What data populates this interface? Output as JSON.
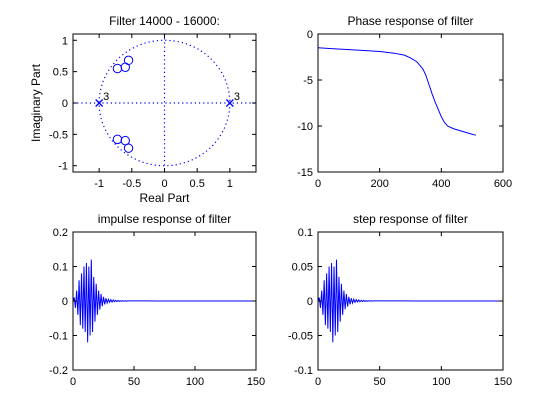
{
  "chart_data": [
    {
      "type": "scatter",
      "title": "Filter 14000 - 16000:",
      "xlabel": "Real Part",
      "ylabel": "Imaginary Part",
      "xlim": [
        -1.4,
        1.4
      ],
      "ylim": [
        -1.1,
        1.1
      ],
      "xticks": [
        -1,
        -0.5,
        0,
        0.5,
        1
      ],
      "xtick_labels": [
        "-1",
        "-0.5",
        "0",
        "0.5",
        "1"
      ],
      "yticks": [
        -1,
        -0.5,
        0,
        0.5,
        1
      ],
      "yticks_labels": [
        "-1",
        "-0.5",
        "0",
        "0.5",
        "1"
      ],
      "zeros": [
        {
          "x": -0.72,
          "y": 0.55
        },
        {
          "x": -0.6,
          "y": 0.57
        },
        {
          "x": -0.55,
          "y": 0.68
        },
        {
          "x": -0.72,
          "y": -0.58
        },
        {
          "x": -0.6,
          "y": -0.6
        },
        {
          "x": -0.55,
          "y": -0.72
        }
      ],
      "poles": [
        {
          "x": -1.0,
          "y": 0,
          "multiplicity": "3"
        },
        {
          "x": 1.0,
          "y": 0,
          "multiplicity": "3"
        }
      ],
      "unit_circle": true,
      "grid": false
    },
    {
      "type": "line",
      "title": "Phase response of filter",
      "xlabel": "",
      "ylabel": "",
      "xlim": [
        0,
        600
      ],
      "ylim": [
        -15,
        0
      ],
      "xticks": [
        0,
        200,
        400,
        600
      ],
      "xtick_labels": [
        "0",
        "200",
        "400",
        "600"
      ],
      "yticks": [
        -15,
        -10,
        -5,
        0
      ],
      "yticks_labels": [
        "-15",
        "-10",
        "-5",
        "0"
      ],
      "x": [
        0,
        50,
        100,
        150,
        200,
        250,
        280,
        300,
        320,
        340,
        350,
        360,
        370,
        380,
        390,
        400,
        410,
        420,
        440,
        470,
        500,
        512
      ],
      "y": [
        -1.5,
        -1.6,
        -1.7,
        -1.8,
        -1.9,
        -2.1,
        -2.3,
        -2.6,
        -3.0,
        -3.8,
        -4.5,
        -5.5,
        -6.5,
        -7.4,
        -8.2,
        -9.0,
        -9.6,
        -10.0,
        -10.3,
        -10.6,
        -10.9,
        -11.0
      ],
      "grid": false
    },
    {
      "type": "line",
      "title": "impulse response of filter",
      "xlabel": "",
      "ylabel": "",
      "xlim": [
        0,
        150
      ],
      "ylim": [
        -0.2,
        0.2
      ],
      "xticks": [
        0,
        50,
        100,
        150
      ],
      "xtick_labels": [
        "0",
        "50",
        "100",
        "150"
      ],
      "yticks": [
        -0.2,
        -0.1,
        0,
        0.1,
        0.2
      ],
      "yticks_labels": [
        "-0.2",
        "-0.1",
        "0",
        "0.1",
        "0.2"
      ],
      "x": [
        0,
        1,
        2,
        3,
        4,
        5,
        6,
        7,
        8,
        9,
        10,
        11,
        12,
        13,
        14,
        15,
        16,
        17,
        18,
        19,
        20,
        21,
        22,
        23,
        24,
        25,
        26,
        27,
        28,
        29,
        30,
        31,
        32,
        33,
        34,
        35,
        36,
        37,
        38,
        39,
        40,
        41,
        42,
        43,
        44,
        45,
        50,
        60,
        70,
        80,
        90,
        100,
        110,
        120,
        130,
        140,
        150
      ],
      "y": [
        0.0,
        0.01,
        -0.02,
        0.03,
        -0.04,
        0.06,
        -0.07,
        0.08,
        -0.08,
        0.1,
        -0.09,
        0.11,
        -0.12,
        0.1,
        -0.1,
        0.12,
        -0.09,
        0.07,
        -0.06,
        0.05,
        -0.04,
        0.03,
        -0.025,
        0.02,
        -0.015,
        0.012,
        -0.01,
        0.008,
        -0.006,
        0.005,
        -0.004,
        0.004,
        -0.003,
        0.003,
        -0.002,
        0.002,
        -0.0015,
        0.0015,
        -0.001,
        0.001,
        -0.0008,
        0.0008,
        -0.0006,
        0.0006,
        -0.0005,
        0.0004,
        0.0003,
        0.0002,
        0.0001,
        0.0001,
        0.0001,
        0.0,
        0.0,
        0.0,
        0.0,
        0.0,
        0.0
      ],
      "grid": false
    },
    {
      "type": "line",
      "title": "step response of filter",
      "xlabel": "",
      "ylabel": "",
      "xlim": [
        0,
        150
      ],
      "ylim": [
        -0.1,
        0.1
      ],
      "xticks": [
        0,
        50,
        100,
        150
      ],
      "xtick_labels": [
        "0",
        "50",
        "100",
        "150"
      ],
      "yticks": [
        -0.1,
        -0.05,
        0,
        0.05,
        0.1
      ],
      "yticks_labels": [
        "-0.1",
        "-0.05",
        "0",
        "0.05",
        "0.1"
      ],
      "x": [
        0,
        1,
        2,
        3,
        4,
        5,
        6,
        7,
        8,
        9,
        10,
        11,
        12,
        13,
        14,
        15,
        16,
        17,
        18,
        19,
        20,
        21,
        22,
        23,
        24,
        25,
        26,
        27,
        28,
        29,
        30,
        31,
        32,
        33,
        34,
        35,
        36,
        37,
        38,
        39,
        40,
        41,
        42,
        43,
        44,
        45,
        50,
        60,
        70,
        80,
        90,
        100,
        110,
        120,
        130,
        140,
        150
      ],
      "y": [
        0.0,
        0.005,
        -0.01,
        0.015,
        -0.02,
        0.03,
        -0.035,
        0.04,
        -0.04,
        0.05,
        -0.045,
        0.055,
        -0.06,
        0.05,
        -0.05,
        0.06,
        -0.045,
        0.035,
        -0.03,
        0.025,
        -0.02,
        0.015,
        -0.012,
        0.01,
        -0.008,
        0.006,
        -0.005,
        0.004,
        -0.003,
        0.0025,
        -0.002,
        0.002,
        -0.0015,
        0.0015,
        -0.001,
        0.001,
        -0.0008,
        0.0008,
        -0.0005,
        0.0005,
        -0.0004,
        0.0004,
        -0.0003,
        0.0003,
        -0.0002,
        0.0002,
        0.0002,
        0.0001,
        0.0001,
        0.0,
        0.0,
        0.0,
        0.0,
        0.0,
        0.0,
        0.0,
        0.0
      ],
      "grid": false
    }
  ]
}
